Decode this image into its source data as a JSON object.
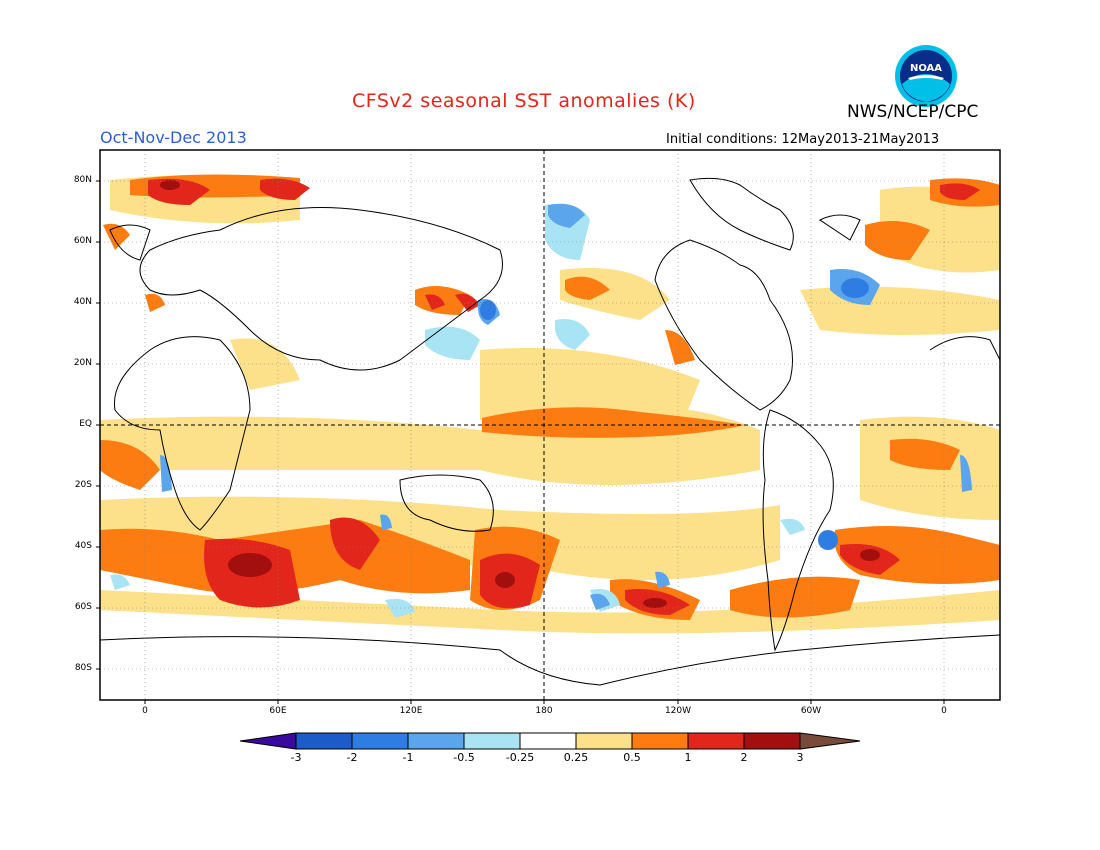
{
  "header": {
    "title": "CFSv2 seasonal SST anomalies (K)",
    "agency": "NWS/NCEP/CPC",
    "period": "Oct-Nov-Dec 2013",
    "initial_conditions": "Initial conditions: 12May2013-21May2013",
    "logo_text": "NOAA"
  },
  "map": {
    "y_labels": [
      "80N",
      "60N",
      "40N",
      "20N",
      "EQ",
      "20S",
      "40S",
      "60S",
      "80S"
    ],
    "x_labels": [
      "0",
      "60E",
      "120E",
      "180",
      "120W",
      "60W",
      "0"
    ]
  },
  "colorbar": {
    "labels": [
      "-3",
      "-2",
      "-1",
      "-0.5",
      "-0.25",
      "0.25",
      "0.5",
      "1",
      "2",
      "3"
    ],
    "colors": [
      "#3a0a9c",
      "#1c5cc9",
      "#2f7de3",
      "#5ba5ec",
      "#a8e4f3",
      "#ffffff",
      "#fde08a",
      "#fd7c12",
      "#e3261b",
      "#a20f0f",
      "#7a4a3a"
    ]
  }
}
